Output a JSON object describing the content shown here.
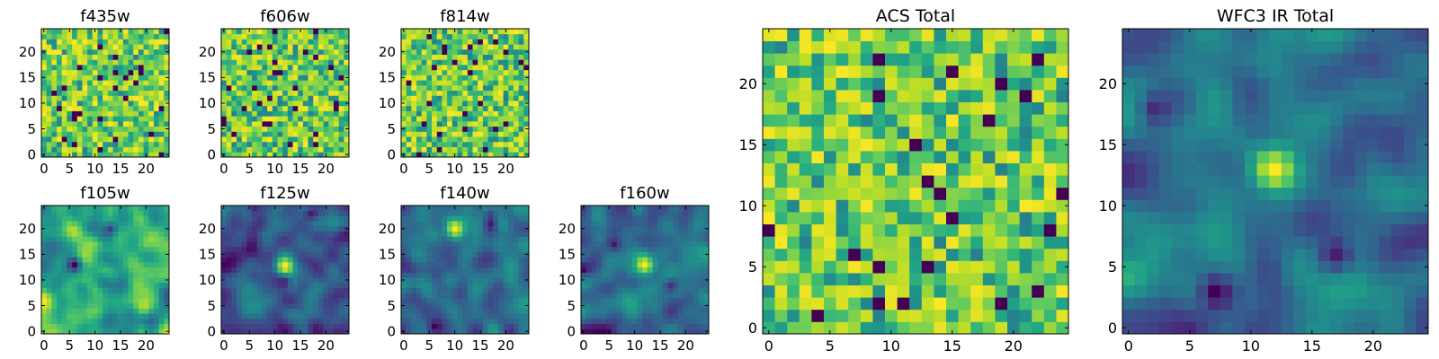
{
  "chart_data": [
    {
      "type": "heatmap",
      "title": "f435w",
      "rows": 25,
      "cols": 25,
      "xticks": [
        0,
        5,
        10,
        15,
        20
      ],
      "yticks": [
        0,
        5,
        10,
        15,
        20
      ],
      "xlim": [
        -0.5,
        24.5
      ],
      "ylim": [
        -0.5,
        24.5
      ],
      "colormap": "viridis",
      "pattern": "uniform-noise",
      "seed": 11,
      "smooth": 0
    },
    {
      "type": "heatmap",
      "title": "f606w",
      "rows": 25,
      "cols": 25,
      "xticks": [
        0,
        5,
        10,
        15,
        20
      ],
      "yticks": [
        0,
        5,
        10,
        15,
        20
      ],
      "xlim": [
        -0.5,
        24.5
      ],
      "ylim": [
        -0.5,
        24.5
      ],
      "colormap": "viridis",
      "pattern": "uniform-noise",
      "seed": 23,
      "smooth": 0
    },
    {
      "type": "heatmap",
      "title": "f814w",
      "rows": 25,
      "cols": 25,
      "xticks": [
        0,
        5,
        10,
        15,
        20
      ],
      "yticks": [
        0,
        5,
        10,
        15,
        20
      ],
      "xlim": [
        -0.5,
        24.5
      ],
      "ylim": [
        -0.5,
        24.5
      ],
      "colormap": "viridis",
      "pattern": "uniform-noise",
      "seed": 37,
      "smooth": 0
    },
    {
      "type": "heatmap",
      "title": "f105w",
      "rows": 25,
      "cols": 25,
      "xticks": [
        0,
        5,
        10,
        15,
        20
      ],
      "yticks": [
        0,
        5,
        10,
        15,
        20
      ],
      "xlim": [
        -0.5,
        24.5
      ],
      "ylim": [
        -0.5,
        24.5
      ],
      "colormap": "viridis",
      "pattern": "smooth-noise",
      "seed": 51,
      "smooth": 1
    },
    {
      "type": "heatmap",
      "title": "f125w",
      "rows": 25,
      "cols": 25,
      "xticks": [
        0,
        5,
        10,
        15,
        20
      ],
      "yticks": [
        0,
        5,
        10,
        15,
        20
      ],
      "xlim": [
        -0.5,
        24.5
      ],
      "ylim": [
        -0.5,
        24.5
      ],
      "colormap": "viridis",
      "pattern": "smooth-noise-with-bright-source",
      "seed": 67,
      "smooth": 1,
      "peak": [
        12,
        13
      ]
    },
    {
      "type": "heatmap",
      "title": "f140w",
      "rows": 25,
      "cols": 25,
      "xticks": [
        0,
        5,
        10,
        15,
        20
      ],
      "yticks": [
        0,
        5,
        10,
        15,
        20
      ],
      "xlim": [
        -0.5,
        24.5
      ],
      "ylim": [
        -0.5,
        24.5
      ],
      "colormap": "viridis",
      "pattern": "smooth-noise-with-bright-source",
      "seed": 79,
      "smooth": 1,
      "peak": [
        10,
        20
      ]
    },
    {
      "type": "heatmap",
      "title": "f160w",
      "rows": 25,
      "cols": 25,
      "xticks": [
        0,
        5,
        10,
        15,
        20
      ],
      "yticks": [
        0,
        5,
        10,
        15,
        20
      ],
      "xlim": [
        -0.5,
        24.5
      ],
      "ylim": [
        -0.5,
        24.5
      ],
      "colormap": "viridis",
      "pattern": "smooth-noise-with-bright-source",
      "seed": 97,
      "smooth": 1,
      "peak": [
        12,
        13
      ]
    },
    {
      "type": "heatmap",
      "title": "ACS Total",
      "rows": 25,
      "cols": 25,
      "xticks": [
        0,
        5,
        10,
        15,
        20
      ],
      "yticks": [
        0,
        5,
        10,
        15,
        20
      ],
      "xlim": [
        -0.5,
        24.5
      ],
      "ylim": [
        -0.5,
        24.5
      ],
      "colormap": "viridis",
      "pattern": "uniform-noise",
      "seed": 131,
      "smooth": 0
    },
    {
      "type": "heatmap",
      "title": "WFC3 IR Total",
      "rows": 25,
      "cols": 25,
      "xticks": [
        0,
        5,
        10,
        15,
        20
      ],
      "yticks": [
        0,
        5,
        10,
        15,
        20
      ],
      "xlim": [
        -0.5,
        24.5
      ],
      "ylim": [
        -0.5,
        24.5
      ],
      "colormap": "viridis",
      "pattern": "smooth-noise-with-bright-source",
      "seed": 157,
      "smooth": 1,
      "peak": [
        12,
        13
      ]
    }
  ]
}
